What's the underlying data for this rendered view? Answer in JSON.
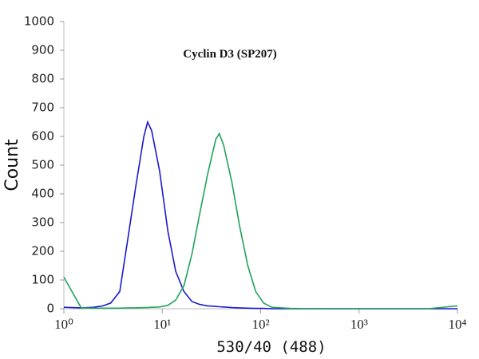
{
  "chart_data": {
    "type": "line",
    "title": "Cyclin D3 (SP207)",
    "xlabel": "530/40 (488)",
    "ylabel": "Count",
    "x": [
      1,
      1.5,
      2,
      2.5,
      3,
      3.7,
      4.5,
      5.4,
      6.5,
      7.1,
      7.8,
      9.4,
      11.4,
      13.7,
      16.6,
      20,
      24,
      29,
      35,
      38,
      42,
      51,
      61,
      74,
      89,
      107,
      130,
      200,
      500,
      1000,
      5000,
      10000
    ],
    "series": [
      {
        "name": "blue",
        "color": "#1a1acc",
        "values": [
          5,
          3,
          5,
          10,
          20,
          60,
          250,
          430,
          600,
          650,
          620,
          480,
          270,
          130,
          60,
          25,
          15,
          10,
          8,
          7,
          6,
          4,
          3,
          2,
          1,
          1,
          0,
          0,
          0,
          0,
          0,
          0
        ]
      },
      {
        "name": "green",
        "color": "#1fa35a",
        "values": [
          110,
          3,
          2,
          2,
          2,
          2,
          3,
          3,
          4,
          4,
          5,
          6,
          12,
          30,
          80,
          190,
          330,
          470,
          590,
          610,
          570,
          440,
          290,
          150,
          60,
          20,
          5,
          1,
          0,
          0,
          0,
          10
        ]
      }
    ],
    "xscale": "log",
    "xlim": [
      1,
      10000
    ],
    "xticks": [
      {
        "value": 1,
        "label": "10⁰"
      },
      {
        "value": 10,
        "label": "10¹"
      },
      {
        "value": 100,
        "label": "10²"
      },
      {
        "value": 1000,
        "label": "10³"
      },
      {
        "value": 10000,
        "label": "10⁴"
      }
    ],
    "ylim": [
      0,
      1000
    ],
    "yticks": [
      0,
      100,
      200,
      300,
      400,
      500,
      600,
      700,
      800,
      900,
      1000
    ]
  }
}
